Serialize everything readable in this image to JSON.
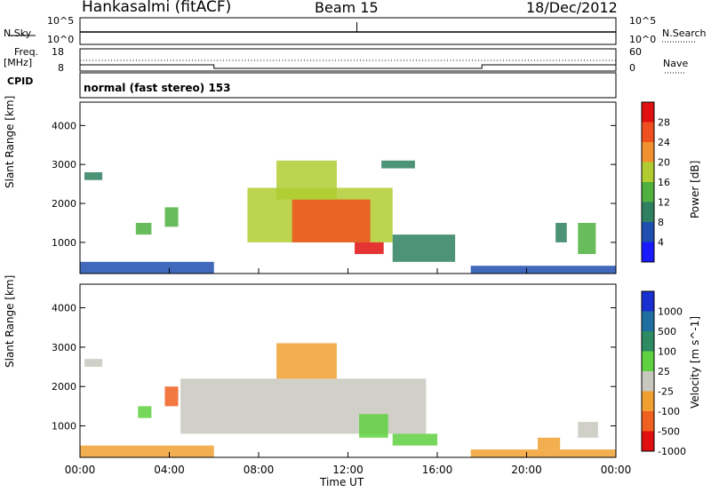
{
  "header": {
    "station": "Hankasalmi (fitACF)",
    "beam": "Beam 15",
    "date": "18/Dec/2012"
  },
  "top_panel": {
    "nsky_label": "N.Sky",
    "nsearch_label": "N.Search",
    "nsky_ticks": [
      "10^5",
      "10^0"
    ],
    "nsearch_ticks": [
      "10^5",
      "10^0"
    ],
    "freq_label": "Freq.",
    "freq_unit": "[MHz]",
    "freq_ticks": [
      "18",
      "8"
    ],
    "nave_label": "Nave",
    "nave_ticks": [
      "60",
      "0"
    ],
    "cpid_label": "CPID",
    "cpid_text": "normal (fast stereo) 153"
  },
  "chart_data": [
    {
      "type": "heatmap",
      "name": "power",
      "ylabel": "Slant Range [km]",
      "colorbar_label": "Power [dB]",
      "yticks": [
        "1000",
        "2000",
        "3000",
        "4000"
      ],
      "ylim": [
        200,
        4600
      ],
      "colorbar_ticks": [
        "4",
        "8",
        "12",
        "16",
        "20",
        "24",
        "28"
      ],
      "colorbar_colors": [
        "#1a1aff",
        "#1f4fb0",
        "#2e8060",
        "#4fb040",
        "#b0cc30",
        "#f09030",
        "#f05020",
        "#e01010"
      ],
      "features": [
        {
          "t0": 0.2,
          "t1": 1.0,
          "r0": 2600,
          "r1": 2800,
          "level": 2
        },
        {
          "t0": 0.0,
          "t1": 6.0,
          "r0": 200,
          "r1": 500,
          "level": 1
        },
        {
          "t0": 2.5,
          "t1": 3.2,
          "r0": 1200,
          "r1": 1500,
          "level": 3
        },
        {
          "t0": 3.8,
          "t1": 4.4,
          "r0": 1400,
          "r1": 1900,
          "level": 3
        },
        {
          "t0": 7.5,
          "t1": 14.0,
          "r0": 1000,
          "r1": 2400,
          "level": 4
        },
        {
          "t0": 9.5,
          "t1": 13.0,
          "r0": 1000,
          "r1": 2100,
          "level": 6
        },
        {
          "t0": 12.3,
          "t1": 13.6,
          "r0": 700,
          "r1": 1000,
          "level": 7
        },
        {
          "t0": 8.8,
          "t1": 11.5,
          "r0": 2100,
          "r1": 3100,
          "level": 4
        },
        {
          "t0": 13.5,
          "t1": 15.0,
          "r0": 2900,
          "r1": 3100,
          "level": 2
        },
        {
          "t0": 14.0,
          "t1": 16.8,
          "r0": 500,
          "r1": 1200,
          "level": 2
        },
        {
          "t0": 21.3,
          "t1": 21.8,
          "r0": 1000,
          "r1": 1500,
          "level": 2
        },
        {
          "t0": 22.3,
          "t1": 23.1,
          "r0": 700,
          "r1": 1500,
          "level": 3
        },
        {
          "t0": 17.5,
          "t1": 24.0,
          "r0": 200,
          "r1": 400,
          "level": 1
        }
      ]
    },
    {
      "type": "heatmap",
      "name": "velocity",
      "ylabel": "Slant Range [km]",
      "colorbar_label": "Velocity [m s^-1]",
      "yticks": [
        "1000",
        "2000",
        "3000",
        "4000"
      ],
      "ylim": [
        200,
        4600
      ],
      "colorbar_ticks": [
        "1000",
        "500",
        "100",
        "25",
        "-25",
        "-100",
        "-500",
        "-1000"
      ],
      "colorbar_colors": [
        "#1a2fd0",
        "#1f6fa0",
        "#2e8a60",
        "#5fd040",
        "#c8c8c0",
        "#f0a030",
        "#f06020",
        "#e01010"
      ],
      "features": [
        {
          "t0": 0.2,
          "t1": 1.0,
          "r0": 2500,
          "r1": 2700,
          "level": 4
        },
        {
          "t0": 0.0,
          "t1": 6.0,
          "r0": 200,
          "r1": 500,
          "level": 5
        },
        {
          "t0": 2.6,
          "t1": 3.2,
          "r0": 1200,
          "r1": 1500,
          "level": 3
        },
        {
          "t0": 3.8,
          "t1": 4.4,
          "r0": 1500,
          "r1": 2000,
          "level": 6
        },
        {
          "t0": 4.5,
          "t1": 15.5,
          "r0": 800,
          "r1": 2200,
          "level": 4
        },
        {
          "t0": 8.8,
          "t1": 11.5,
          "r0": 2200,
          "r1": 3100,
          "level": 5
        },
        {
          "t0": 12.5,
          "t1": 13.8,
          "r0": 700,
          "r1": 1300,
          "level": 3
        },
        {
          "t0": 14.0,
          "t1": 16.0,
          "r0": 500,
          "r1": 800,
          "level": 3
        },
        {
          "t0": 20.5,
          "t1": 21.5,
          "r0": 400,
          "r1": 700,
          "level": 5
        },
        {
          "t0": 22.3,
          "t1": 23.2,
          "r0": 700,
          "r1": 1100,
          "level": 4
        },
        {
          "t0": 17.5,
          "t1": 24.0,
          "r0": 200,
          "r1": 400,
          "level": 5
        }
      ]
    }
  ],
  "x_axis": {
    "ticks": [
      "00:00",
      "04:00",
      "08:00",
      "12:00",
      "16:00",
      "20:00",
      "00:00"
    ],
    "label": "Time UT",
    "range_hours": [
      0,
      24
    ]
  }
}
